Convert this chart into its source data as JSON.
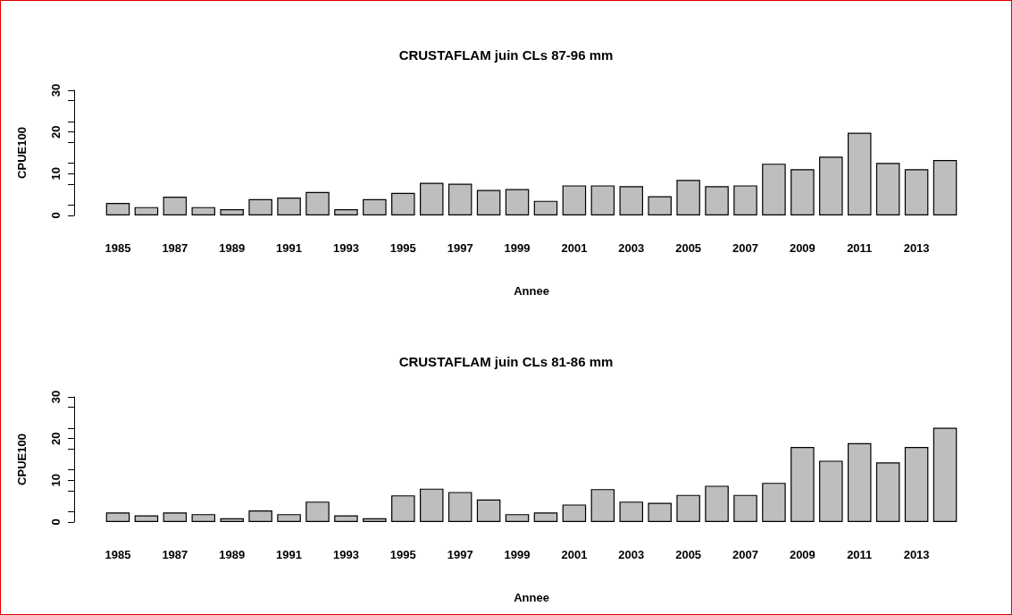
{
  "chart_data": [
    {
      "type": "bar",
      "title": "CRUSTAFLAM juin CLs 87-96 mm",
      "xlabel": "Annee",
      "ylabel": "CPUE100",
      "categories": [
        "1985",
        null,
        "1987",
        null,
        "1989",
        null,
        "1991",
        null,
        "1993",
        null,
        "1995",
        null,
        "1997",
        null,
        "1999",
        null,
        "2001",
        null,
        "2003",
        null,
        "2005",
        null,
        "2007",
        null,
        "2009",
        null,
        "2011",
        null,
        "2013",
        null
      ],
      "values": [
        3.0,
        2.0,
        4.5,
        2.0,
        1.5,
        3.9,
        4.3,
        5.6,
        1.5,
        3.9,
        5.4,
        7.8,
        7.6,
        6.1,
        6.3,
        3.5,
        7.2,
        7.2,
        7.0,
        4.6,
        8.5,
        7.0,
        7.2,
        12.4,
        11.1,
        14.1,
        19.8,
        12.6,
        11.1,
        13.3
      ],
      "color": "#bebebe",
      "ylim": [
        0,
        30
      ],
      "yticks": [
        0,
        10,
        20,
        30
      ]
    },
    {
      "type": "bar",
      "title": "CRUSTAFLAM juin CLs 81-86 mm",
      "xlabel": "Annee",
      "ylabel": "CPUE100",
      "categories": [
        "1985",
        null,
        "1987",
        null,
        "1989",
        null,
        "1991",
        null,
        "1993",
        null,
        "1995",
        null,
        "1997",
        null,
        "1999",
        null,
        "2001",
        null,
        "2003",
        null,
        "2005",
        null,
        "2007",
        null,
        "2009",
        null,
        "2011",
        null,
        "2013",
        null
      ],
      "values": [
        2.3,
        1.6,
        2.3,
        1.9,
        0.9,
        2.8,
        1.9,
        4.9,
        1.6,
        0.9,
        6.4,
        8.0,
        7.2,
        5.4,
        1.9,
        2.3,
        4.2,
        7.9,
        4.9,
        4.6,
        6.5,
        8.7,
        6.5,
        9.4,
        18.0,
        14.7,
        18.9,
        14.3,
        18.0,
        22.6
      ],
      "color": "#bebebe",
      "ylim": [
        0,
        30
      ],
      "yticks": [
        0,
        10,
        20,
        30
      ]
    }
  ]
}
